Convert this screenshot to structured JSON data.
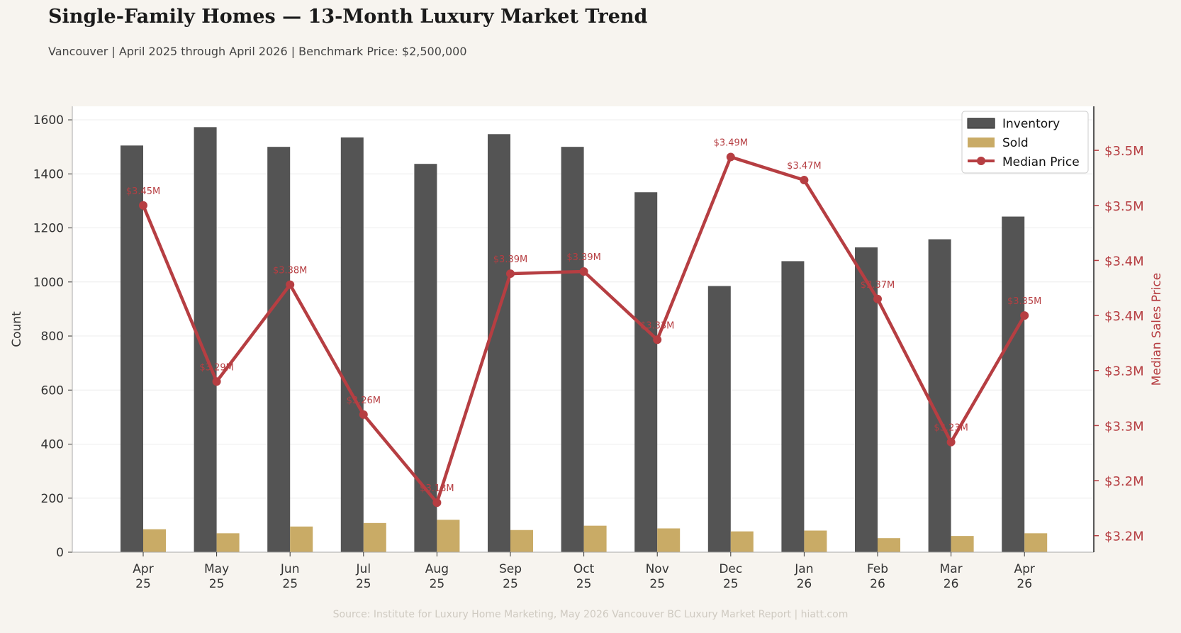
{
  "title": "Single-Family Homes — 13-Month Luxury Market Trend",
  "subtitle": "Vancouver  |  April 2025 through April 2026  |  Benchmark Price: $2,500,000",
  "source": "Source: Institute for Luxury Home Marketing, May 2026 Vancouver BC Luxury Market Report  |  hiatt.com",
  "colors": {
    "inventory": "#545454",
    "sold": "#c9ab66",
    "price": "#b63e42",
    "axis": "#333333",
    "grid": "#ececec",
    "plot_bg": "#ffffff"
  },
  "chart_data": {
    "type": "bar",
    "categories": [
      [
        "Apr",
        "25"
      ],
      [
        "May",
        "25"
      ],
      [
        "Jun",
        "25"
      ],
      [
        "Jul",
        "25"
      ],
      [
        "Aug",
        "25"
      ],
      [
        "Sep",
        "25"
      ],
      [
        "Oct",
        "25"
      ],
      [
        "Nov",
        "25"
      ],
      [
        "Dec",
        "25"
      ],
      [
        "Jan",
        "26"
      ],
      [
        "Feb",
        "26"
      ],
      [
        "Mar",
        "26"
      ],
      [
        "Apr",
        "26"
      ]
    ],
    "series": [
      {
        "name": "Inventory",
        "type": "bar",
        "axis": "left",
        "values": [
          1505,
          1573,
          1500,
          1535,
          1437,
          1547,
          1500,
          1332,
          985,
          1077,
          1128,
          1158,
          1242
        ]
      },
      {
        "name": "Sold",
        "type": "bar",
        "axis": "left",
        "values": [
          85,
          70,
          95,
          108,
          120,
          82,
          98,
          88,
          77,
          80,
          52,
          60,
          70
        ]
      },
      {
        "name": "Median Price",
        "type": "line",
        "axis": "right",
        "values": [
          3450000,
          3290000,
          3378000,
          3260000,
          3180000,
          3388000,
          3390000,
          3328000,
          3494000,
          3473000,
          3365000,
          3235000,
          3350000
        ],
        "labels": [
          "$3.45M",
          "$3.29M",
          "$3.38M",
          "$3.26M",
          "$3.18M",
          "$3.39M",
          "$3.39M",
          "$3.33M",
          "$3.49M",
          "$3.47M",
          "$3.37M",
          "$3.23M",
          "$3.35M"
        ]
      }
    ],
    "ylabel": "Count",
    "y2label": "Median Sales Price",
    "ylim": [
      0,
      1650
    ],
    "yticks": [
      0,
      200,
      400,
      600,
      800,
      1000,
      1200,
      1400,
      1600
    ],
    "y2lim": [
      3135000,
      3540000
    ],
    "y2ticks": [
      3150000,
      3200000,
      3250000,
      3300000,
      3350000,
      3400000,
      3450000,
      3500000
    ],
    "y2ticklabels": [
      "$3.2M",
      "$3.2M",
      "$3.3M",
      "$3.3M",
      "$3.4M",
      "$3.4M",
      "$3.5M",
      "$3.5M"
    ],
    "grid": true,
    "legend_position": "top-right"
  }
}
